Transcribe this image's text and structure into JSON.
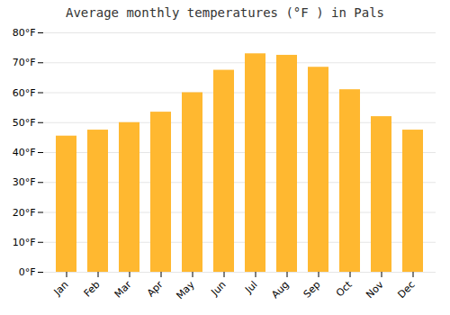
{
  "chart_data": {
    "type": "bar",
    "title": "Average monthly temperatures (°F ) in Pals",
    "categories": [
      "Jan",
      "Feb",
      "Mar",
      "Apr",
      "May",
      "Jun",
      "Jul",
      "Aug",
      "Sep",
      "Oct",
      "Nov",
      "Dec"
    ],
    "values": [
      45.5,
      47.5,
      50.0,
      53.5,
      60.0,
      67.5,
      73.0,
      72.5,
      68.5,
      61.0,
      52.0,
      47.5
    ],
    "color": "#FFB830",
    "ylim": [
      0,
      80
    ],
    "yticks": [
      {
        "value": 0,
        "label": "0°F"
      },
      {
        "value": 10,
        "label": "10°F"
      },
      {
        "value": 20,
        "label": "20°F"
      },
      {
        "value": 30,
        "label": "30°F"
      },
      {
        "value": 40,
        "label": "40°F"
      },
      {
        "value": 50,
        "label": "50°F"
      },
      {
        "value": 60,
        "label": "60°F"
      },
      {
        "value": 70,
        "label": "70°F"
      },
      {
        "value": 80,
        "label": "80°F"
      }
    ],
    "grid": true
  }
}
